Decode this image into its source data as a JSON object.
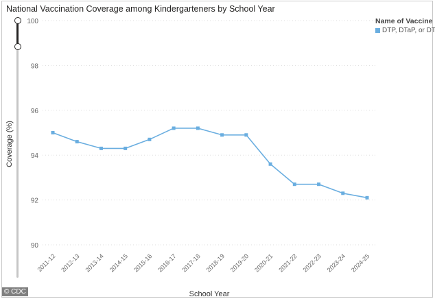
{
  "title": "National Vaccination Coverage among Kindergarteners by School Year",
  "legend": {
    "title": "Name of Vaccine",
    "item": "DTP, DTaP, or DT"
  },
  "copyright": "© CDC",
  "colors": {
    "series": "#6aaee0",
    "grid": "#dddddd"
  },
  "chart_data": {
    "type": "line",
    "xlabel": "School Year",
    "ylabel": "Coverage (%)",
    "ylim": [
      90,
      100
    ],
    "yticks": [
      90,
      92,
      94,
      96,
      98,
      100
    ],
    "grid": true,
    "legend_position": "top-right",
    "categories": [
      "2011-12",
      "2012-13",
      "2013-14",
      "2014-15",
      "2015-16",
      "2016-17",
      "2017-18",
      "2018-19",
      "2019-20",
      "2020-21",
      "2021-22",
      "2022-23",
      "2023-24",
      "2024-25"
    ],
    "series": [
      {
        "name": "DTP, DTaP, or DT",
        "values": [
          95.0,
          94.6,
          94.3,
          94.3,
          94.7,
          95.2,
          95.2,
          94.9,
          94.9,
          93.6,
          92.7,
          92.7,
          92.3,
          92.1
        ]
      }
    ]
  }
}
